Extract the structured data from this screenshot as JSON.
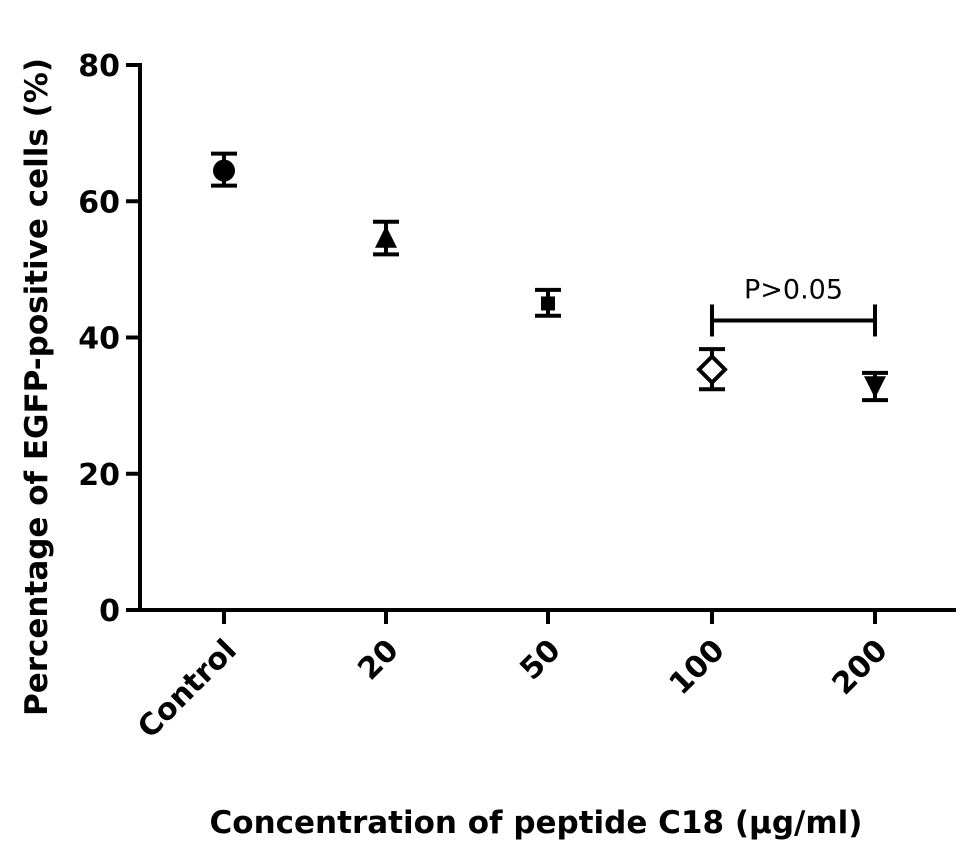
{
  "chart_data": {
    "type": "scatter",
    "title": "",
    "xlabel": "Concentration of peptide C18 (µg/ml)",
    "ylabel": "Percentage of EGFP-positive cells (%)",
    "ylim": [
      0,
      80
    ],
    "yticks": [
      "0",
      "20",
      "40",
      "60",
      "80"
    ],
    "categories": [
      "Control",
      "20",
      "50",
      "100",
      "200"
    ],
    "points": [
      {
        "category": "Control",
        "value": 64.5,
        "err_low": 62.3,
        "err_high": 67.0,
        "marker": "circle"
      },
      {
        "category": "20",
        "value": 54.5,
        "err_low": 52.2,
        "err_high": 57.0,
        "marker": "triangle-up"
      },
      {
        "category": "50",
        "value": 45.0,
        "err_low": 43.2,
        "err_high": 47.0,
        "marker": "square"
      },
      {
        "category": "100",
        "value": 35.3,
        "err_low": 32.4,
        "err_high": 38.3,
        "marker": "diamond-open"
      },
      {
        "category": "200",
        "value": 33.0,
        "err_low": 30.8,
        "err_high": 34.8,
        "marker": "triangle-down"
      }
    ],
    "annotation": {
      "text": "P>0.05",
      "from": "100",
      "to": "200",
      "y": 42.5
    },
    "grid": false
  }
}
